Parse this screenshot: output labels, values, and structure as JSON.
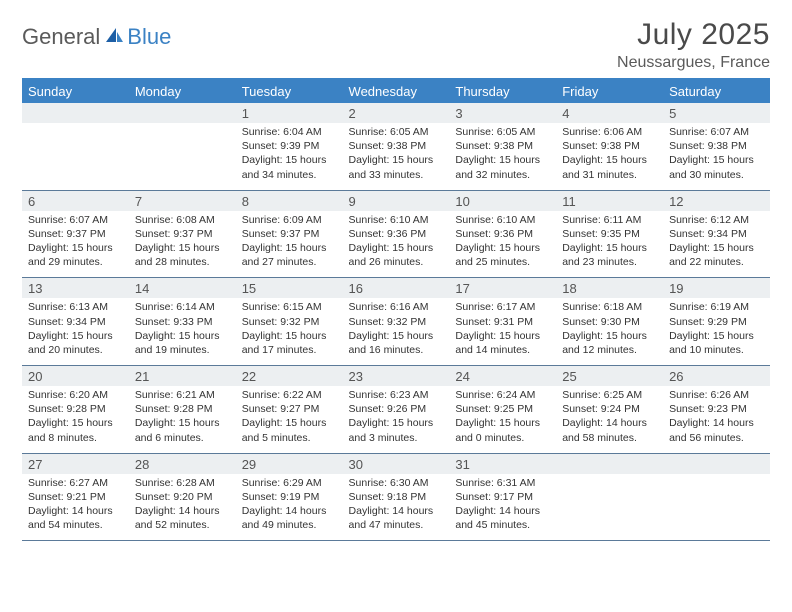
{
  "logo": {
    "text1": "General",
    "text2": "Blue"
  },
  "title": "July 2025",
  "location": "Neussargues, France",
  "colors": {
    "header_bg": "#3b82c4",
    "header_text": "#ffffff",
    "daynum_bg": "#eceff1",
    "row_border": "#5b7a99",
    "text": "#333333",
    "title_text": "#4a4a4a",
    "logo_gray": "#5a5a5a",
    "logo_blue": "#3b82c4"
  },
  "weekdays": [
    "Sunday",
    "Monday",
    "Tuesday",
    "Wednesday",
    "Thursday",
    "Friday",
    "Saturday"
  ],
  "weeks": [
    [
      null,
      null,
      {
        "n": "1",
        "sr": "6:04 AM",
        "ss": "9:39 PM",
        "dl": "15 hours and 34 minutes."
      },
      {
        "n": "2",
        "sr": "6:05 AM",
        "ss": "9:38 PM",
        "dl": "15 hours and 33 minutes."
      },
      {
        "n": "3",
        "sr": "6:05 AM",
        "ss": "9:38 PM",
        "dl": "15 hours and 32 minutes."
      },
      {
        "n": "4",
        "sr": "6:06 AM",
        "ss": "9:38 PM",
        "dl": "15 hours and 31 minutes."
      },
      {
        "n": "5",
        "sr": "6:07 AM",
        "ss": "9:38 PM",
        "dl": "15 hours and 30 minutes."
      }
    ],
    [
      {
        "n": "6",
        "sr": "6:07 AM",
        "ss": "9:37 PM",
        "dl": "15 hours and 29 minutes."
      },
      {
        "n": "7",
        "sr": "6:08 AM",
        "ss": "9:37 PM",
        "dl": "15 hours and 28 minutes."
      },
      {
        "n": "8",
        "sr": "6:09 AM",
        "ss": "9:37 PM",
        "dl": "15 hours and 27 minutes."
      },
      {
        "n": "9",
        "sr": "6:10 AM",
        "ss": "9:36 PM",
        "dl": "15 hours and 26 minutes."
      },
      {
        "n": "10",
        "sr": "6:10 AM",
        "ss": "9:36 PM",
        "dl": "15 hours and 25 minutes."
      },
      {
        "n": "11",
        "sr": "6:11 AM",
        "ss": "9:35 PM",
        "dl": "15 hours and 23 minutes."
      },
      {
        "n": "12",
        "sr": "6:12 AM",
        "ss": "9:34 PM",
        "dl": "15 hours and 22 minutes."
      }
    ],
    [
      {
        "n": "13",
        "sr": "6:13 AM",
        "ss": "9:34 PM",
        "dl": "15 hours and 20 minutes."
      },
      {
        "n": "14",
        "sr": "6:14 AM",
        "ss": "9:33 PM",
        "dl": "15 hours and 19 minutes."
      },
      {
        "n": "15",
        "sr": "6:15 AM",
        "ss": "9:32 PM",
        "dl": "15 hours and 17 minutes."
      },
      {
        "n": "16",
        "sr": "6:16 AM",
        "ss": "9:32 PM",
        "dl": "15 hours and 16 minutes."
      },
      {
        "n": "17",
        "sr": "6:17 AM",
        "ss": "9:31 PM",
        "dl": "15 hours and 14 minutes."
      },
      {
        "n": "18",
        "sr": "6:18 AM",
        "ss": "9:30 PM",
        "dl": "15 hours and 12 minutes."
      },
      {
        "n": "19",
        "sr": "6:19 AM",
        "ss": "9:29 PM",
        "dl": "15 hours and 10 minutes."
      }
    ],
    [
      {
        "n": "20",
        "sr": "6:20 AM",
        "ss": "9:28 PM",
        "dl": "15 hours and 8 minutes."
      },
      {
        "n": "21",
        "sr": "6:21 AM",
        "ss": "9:28 PM",
        "dl": "15 hours and 6 minutes."
      },
      {
        "n": "22",
        "sr": "6:22 AM",
        "ss": "9:27 PM",
        "dl": "15 hours and 5 minutes."
      },
      {
        "n": "23",
        "sr": "6:23 AM",
        "ss": "9:26 PM",
        "dl": "15 hours and 3 minutes."
      },
      {
        "n": "24",
        "sr": "6:24 AM",
        "ss": "9:25 PM",
        "dl": "15 hours and 0 minutes."
      },
      {
        "n": "25",
        "sr": "6:25 AM",
        "ss": "9:24 PM",
        "dl": "14 hours and 58 minutes."
      },
      {
        "n": "26",
        "sr": "6:26 AM",
        "ss": "9:23 PM",
        "dl": "14 hours and 56 minutes."
      }
    ],
    [
      {
        "n": "27",
        "sr": "6:27 AM",
        "ss": "9:21 PM",
        "dl": "14 hours and 54 minutes."
      },
      {
        "n": "28",
        "sr": "6:28 AM",
        "ss": "9:20 PM",
        "dl": "14 hours and 52 minutes."
      },
      {
        "n": "29",
        "sr": "6:29 AM",
        "ss": "9:19 PM",
        "dl": "14 hours and 49 minutes."
      },
      {
        "n": "30",
        "sr": "6:30 AM",
        "ss": "9:18 PM",
        "dl": "14 hours and 47 minutes."
      },
      {
        "n": "31",
        "sr": "6:31 AM",
        "ss": "9:17 PM",
        "dl": "14 hours and 45 minutes."
      },
      null,
      null
    ]
  ],
  "labels": {
    "sunrise": "Sunrise:",
    "sunset": "Sunset:",
    "daylight": "Daylight:"
  }
}
